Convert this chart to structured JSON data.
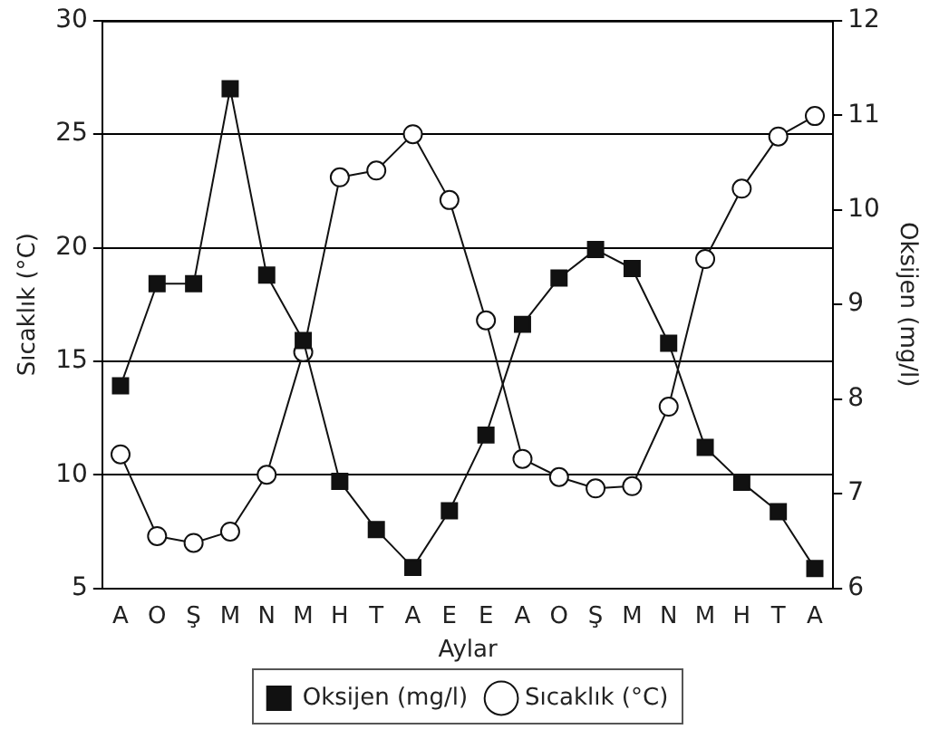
{
  "chart_data": {
    "type": "line",
    "xlabel": "Aylar",
    "ylabel": "Sıcaklık (°C)",
    "y2label": "Oksijen (mg/l)",
    "categories": [
      "A",
      "O",
      "Ş",
      "M",
      "N",
      "M",
      "H",
      "T",
      "A",
      "E",
      "E",
      "A",
      "O",
      "Ş",
      "M",
      "N",
      "M",
      "H",
      "T",
      "A"
    ],
    "series": [
      {
        "name": "Oksijen (mg/l)",
        "color": "#111111",
        "axis": "y2",
        "marker": "square",
        "values": [
          8.14,
          9.22,
          9.22,
          11.28,
          9.31,
          8.62,
          7.13,
          6.62,
          6.22,
          6.82,
          7.62,
          8.79,
          9.28,
          9.58,
          9.38,
          8.59,
          7.49,
          7.12,
          6.81,
          6.21
        ]
      },
      {
        "name": "Sıcaklık (°C)",
        "color": "#111111",
        "marker": "circle",
        "values": [
          10.9,
          7.3,
          7.0,
          7.5,
          10.0,
          15.4,
          23.1,
          23.4,
          25.0,
          22.1,
          16.8,
          10.7,
          9.9,
          9.4,
          9.5,
          13.0,
          19.5,
          22.6,
          24.9,
          25.8
        ]
      }
    ],
    "ylim": [
      5,
      30
    ],
    "yticks": [
      5,
      10,
      15,
      20,
      25,
      30
    ],
    "y2lim": [
      6,
      12
    ],
    "y2ticks": [
      6,
      7,
      8,
      9,
      10,
      11,
      12
    ],
    "grid": "y",
    "legend": "bottom",
    "line_style": "solid"
  }
}
